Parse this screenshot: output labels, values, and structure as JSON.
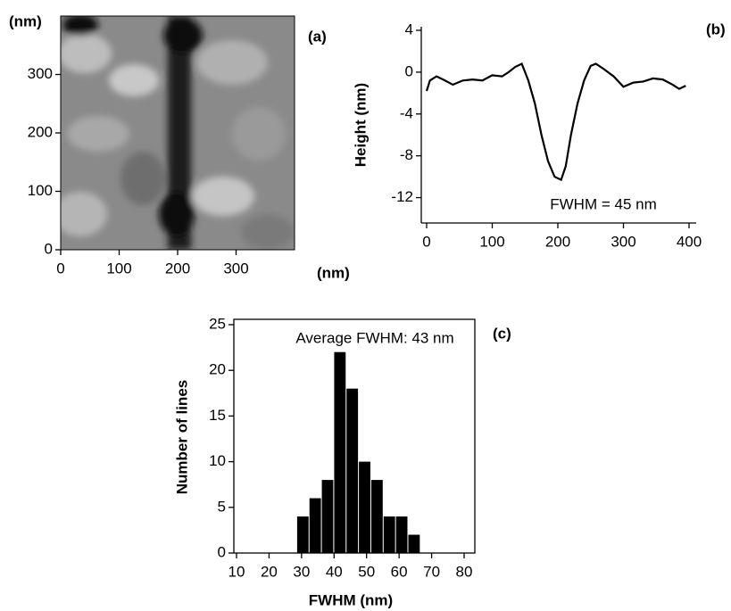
{
  "chart_data": [
    {
      "type": "image",
      "panel_label": "(a)",
      "xlabel": "(nm)",
      "ylabel": "(nm)",
      "xlim": [
        0,
        400
      ],
      "ylim": [
        0,
        400
      ],
      "xticks": [
        0,
        100,
        200,
        300
      ],
      "yticks": [
        0,
        100,
        200,
        300
      ]
    },
    {
      "type": "line",
      "panel_label": "(b)",
      "ylabel": "Height (nm)",
      "annotation": "FWHM = 45 nm",
      "x": [
        0,
        5,
        15,
        25,
        40,
        55,
        70,
        85,
        100,
        115,
        125,
        135,
        145,
        155,
        165,
        175,
        185,
        195,
        205,
        212,
        220,
        230,
        240,
        250,
        258,
        270,
        285,
        300,
        315,
        330,
        345,
        360,
        375,
        385,
        395
      ],
      "values": [
        -1.8,
        -0.8,
        -0.4,
        -0.7,
        -1.2,
        -0.8,
        -0.7,
        -0.8,
        -0.3,
        -0.4,
        0.0,
        0.5,
        0.8,
        -0.8,
        -3,
        -6,
        -8.5,
        -10,
        -10.3,
        -9,
        -6,
        -3,
        -0.8,
        0.6,
        0.8,
        0.3,
        -0.4,
        -1.4,
        -1.0,
        -0.9,
        -0.6,
        -0.7,
        -1.2,
        -1.6,
        -1.3
      ],
      "color": "#000000",
      "xlim": [
        0,
        400
      ],
      "ylim": [
        -14,
        4
      ],
      "xticks": [
        0,
        100,
        200,
        300,
        400
      ],
      "yticks": [
        4,
        0,
        -4,
        -8,
        -12
      ]
    },
    {
      "type": "histogram",
      "panel_label": "(c)",
      "xlabel": "FWHM (nm)",
      "ylabel": "Number of lines",
      "annotation": "Average FWHM: 43 nm",
      "bins": [
        28.5,
        32.3,
        36.1,
        39.9,
        43.7,
        47.5,
        51.3,
        55.1,
        58.9,
        62.7,
        66.5
      ],
      "values": [
        4,
        6,
        8,
        22,
        18,
        10,
        8,
        4,
        4,
        2
      ],
      "color": "#000000",
      "xlim": [
        10,
        80
      ],
      "ylim": [
        0,
        25
      ],
      "xticks": [
        10,
        20,
        30,
        40,
        50,
        60,
        70,
        80
      ],
      "yticks": [
        0,
        5,
        10,
        15,
        20,
        25
      ]
    }
  ]
}
